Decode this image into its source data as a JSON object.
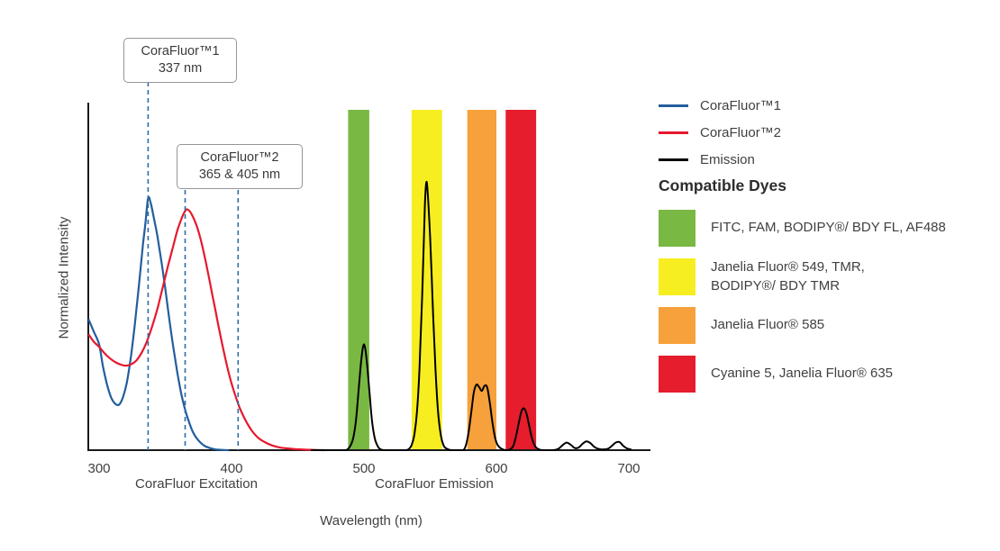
{
  "figure": {
    "ylabel": "Normalized Intensity",
    "xlabel": "Wavelength (nm)",
    "section_labels": {
      "excitation": "CoraFluor Excitation",
      "emission": "CoraFluor Emission"
    }
  },
  "annotations": {
    "corafluor1": {
      "title": "CoraFluor™1",
      "value": "337 nm"
    },
    "corafluor2": {
      "title": "CoraFluor™2",
      "value": "365 & 405 nm"
    }
  },
  "legend": {
    "items": [
      {
        "label": "CoraFluor™1",
        "color": "#235e9e"
      },
      {
        "label": "CoraFluor™2",
        "color": "#e6192e"
      },
      {
        "label": "Emission",
        "color": "#000000"
      }
    ]
  },
  "dyes": {
    "title": "Compatible Dyes",
    "items": [
      {
        "label": "FITC, FAM, BODIPY®/ BDY FL, AF488",
        "color": "#79b843"
      },
      {
        "label": "Janelia Fluor® 549, TMR,\nBODIPY®/ BDY TMR",
        "color": "#f7ee21"
      },
      {
        "label": "Janelia Fluor® 585",
        "color": "#f6a13b"
      },
      {
        "label": "Cyanine 5, Janelia Fluor® 635",
        "color": "#e51d2c"
      }
    ]
  },
  "chart_data": {
    "type": "line",
    "title": "",
    "xlabel": "Wavelength (nm)",
    "ylabel": "Normalized Intensity",
    "xlim": [
      292,
      715
    ],
    "ylim": [
      0,
      1.35
    ],
    "grid": false,
    "legend_position": "top-right",
    "axis_color": "#1a1a1a",
    "x_ticks": [
      300,
      400,
      500,
      600,
      700
    ],
    "annotation_line_color": "#2d6ca3",
    "annotation_lines": [
      {
        "x": 337,
        "label": "CoraFluor™1 337 nm"
      },
      {
        "x": 365,
        "label": "CoraFluor™2 365 nm"
      },
      {
        "x": 405,
        "label": "CoraFluor™2 405 nm"
      }
    ],
    "bands": [
      {
        "name": "green-filter",
        "color": "#79b843",
        "x0": 488,
        "x1": 504
      },
      {
        "name": "yellow-filter",
        "color": "#f7ee21",
        "x0": 536,
        "x1": 559
      },
      {
        "name": "orange-filter",
        "color": "#f6a13b",
        "x0": 578,
        "x1": 600
      },
      {
        "name": "red-filter",
        "color": "#e51d2c",
        "x0": 607,
        "x1": 630
      }
    ],
    "series": [
      {
        "name": "CoraFluor™1",
        "id": "corafluor1-excitation",
        "color": "#235e9e",
        "width": 2.2,
        "points": [
          [
            292,
            0.52
          ],
          [
            296,
            0.47
          ],
          [
            300,
            0.42
          ],
          [
            303,
            0.33
          ],
          [
            306,
            0.26
          ],
          [
            309,
            0.21
          ],
          [
            312,
            0.185
          ],
          [
            315,
            0.18
          ],
          [
            318,
            0.21
          ],
          [
            321,
            0.27
          ],
          [
            324,
            0.37
          ],
          [
            327,
            0.5
          ],
          [
            330,
            0.65
          ],
          [
            333,
            0.81
          ],
          [
            335,
            0.9
          ],
          [
            337,
            1.0
          ],
          [
            339,
            0.98
          ],
          [
            341,
            0.93
          ],
          [
            344,
            0.85
          ],
          [
            347,
            0.75
          ],
          [
            350,
            0.64
          ],
          [
            353,
            0.52
          ],
          [
            356,
            0.41
          ],
          [
            359,
            0.31
          ],
          [
            362,
            0.225
          ],
          [
            365,
            0.16
          ],
          [
            368,
            0.11
          ],
          [
            371,
            0.07
          ],
          [
            374,
            0.045
          ],
          [
            377,
            0.028
          ],
          [
            380,
            0.016
          ],
          [
            384,
            0.008
          ],
          [
            388,
            0.003
          ],
          [
            393,
            0.001
          ],
          [
            398,
            0
          ]
        ]
      },
      {
        "name": "CoraFluor™2",
        "id": "corafluor2-excitation",
        "color": "#e6192e",
        "width": 2.2,
        "points": [
          [
            292,
            0.46
          ],
          [
            296,
            0.43
          ],
          [
            300,
            0.41
          ],
          [
            304,
            0.385
          ],
          [
            308,
            0.365
          ],
          [
            312,
            0.35
          ],
          [
            316,
            0.34
          ],
          [
            320,
            0.335
          ],
          [
            324,
            0.34
          ],
          [
            328,
            0.355
          ],
          [
            332,
            0.385
          ],
          [
            336,
            0.43
          ],
          [
            340,
            0.49
          ],
          [
            344,
            0.56
          ],
          [
            348,
            0.645
          ],
          [
            352,
            0.73
          ],
          [
            356,
            0.81
          ],
          [
            359,
            0.87
          ],
          [
            362,
            0.915
          ],
          [
            364,
            0.94
          ],
          [
            366,
            0.955
          ],
          [
            368,
            0.95
          ],
          [
            370,
            0.935
          ],
          [
            373,
            0.9
          ],
          [
            376,
            0.85
          ],
          [
            379,
            0.785
          ],
          [
            382,
            0.71
          ],
          [
            385,
            0.63
          ],
          [
            388,
            0.55
          ],
          [
            391,
            0.47
          ],
          [
            394,
            0.395
          ],
          [
            397,
            0.325
          ],
          [
            400,
            0.265
          ],
          [
            403,
            0.215
          ],
          [
            406,
            0.17
          ],
          [
            409,
            0.135
          ],
          [
            412,
            0.105
          ],
          [
            415,
            0.08
          ],
          [
            418,
            0.06
          ],
          [
            421,
            0.045
          ],
          [
            425,
            0.032
          ],
          [
            429,
            0.022
          ],
          [
            433,
            0.015
          ],
          [
            437,
            0.01
          ],
          [
            442,
            0.007
          ],
          [
            448,
            0.004
          ],
          [
            455,
            0.002
          ],
          [
            462,
            0.001
          ],
          [
            470,
            0
          ]
        ]
      },
      {
        "name": "Emission",
        "id": "emission",
        "color": "#000000",
        "width": 2,
        "points": [
          [
            460,
            0
          ],
          [
            480,
            0
          ],
          [
            486,
            0
          ],
          [
            488,
            0.005
          ],
          [
            490,
            0.02
          ],
          [
            492,
            0.05
          ],
          [
            494,
            0.12
          ],
          [
            496,
            0.24
          ],
          [
            498,
            0.36
          ],
          [
            500,
            0.42
          ],
          [
            502,
            0.36
          ],
          [
            504,
            0.24
          ],
          [
            506,
            0.12
          ],
          [
            508,
            0.05
          ],
          [
            510,
            0.02
          ],
          [
            512,
            0.005
          ],
          [
            516,
            0
          ],
          [
            528,
            0
          ],
          [
            532,
            0
          ],
          [
            534,
            0.005
          ],
          [
            536,
            0.02
          ],
          [
            538,
            0.06
          ],
          [
            540,
            0.15
          ],
          [
            542,
            0.33
          ],
          [
            544,
            0.62
          ],
          [
            546,
            0.97
          ],
          [
            547,
            1.06
          ],
          [
            548,
            1.03
          ],
          [
            550,
            0.84
          ],
          [
            552,
            0.57
          ],
          [
            554,
            0.32
          ],
          [
            556,
            0.15
          ],
          [
            558,
            0.06
          ],
          [
            560,
            0.02
          ],
          [
            562,
            0.007
          ],
          [
            566,
            0
          ],
          [
            572,
            0
          ],
          [
            575,
            0
          ],
          [
            577,
            0.02
          ],
          [
            579,
            0.07
          ],
          [
            581,
            0.15
          ],
          [
            583,
            0.23
          ],
          [
            585,
            0.26
          ],
          [
            587,
            0.25
          ],
          [
            589,
            0.235
          ],
          [
            591,
            0.255
          ],
          [
            593,
            0.25
          ],
          [
            595,
            0.19
          ],
          [
            597,
            0.11
          ],
          [
            599,
            0.05
          ],
          [
            601,
            0.02
          ],
          [
            604,
            0.005
          ],
          [
            608,
            0
          ],
          [
            611,
            0.005
          ],
          [
            613,
            0.02
          ],
          [
            615,
            0.06
          ],
          [
            617,
            0.11
          ],
          [
            619,
            0.155
          ],
          [
            621,
            0.165
          ],
          [
            623,
            0.14
          ],
          [
            625,
            0.09
          ],
          [
            627,
            0.045
          ],
          [
            629,
            0.018
          ],
          [
            631,
            0.006
          ],
          [
            635,
            0
          ],
          [
            643,
            0
          ],
          [
            647,
            0.006
          ],
          [
            650,
            0.02
          ],
          [
            653,
            0.03
          ],
          [
            656,
            0.022
          ],
          [
            659,
            0.009
          ],
          [
            662,
            0.01
          ],
          [
            665,
            0.025
          ],
          [
            668,
            0.035
          ],
          [
            671,
            0.028
          ],
          [
            674,
            0.013
          ],
          [
            677,
            0.005
          ],
          [
            680,
            0.003
          ],
          [
            684,
            0.005
          ],
          [
            687,
            0.016
          ],
          [
            690,
            0.03
          ],
          [
            693,
            0.032
          ],
          [
            696,
            0.016
          ],
          [
            699,
            0.006
          ],
          [
            702,
            0.002
          ]
        ]
      }
    ]
  }
}
